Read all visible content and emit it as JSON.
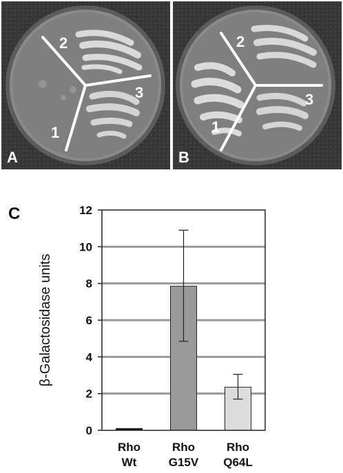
{
  "figure": {
    "panels": [
      {
        "letter": "A",
        "sectors": [
          "1",
          "2",
          "3"
        ]
      },
      {
        "letter": "B",
        "sectors": [
          "1",
          "2",
          "3"
        ]
      }
    ],
    "panel_c_letter": "C"
  },
  "chart_data": {
    "type": "bar",
    "categories": [
      {
        "line1": "Rho",
        "line2": "Wt"
      },
      {
        "line1": "Rho",
        "line2": "G15V"
      },
      {
        "line1": "Rho",
        "line2": "Q64L"
      }
    ],
    "values": [
      0.1,
      7.85,
      2.35
    ],
    "error_low": [
      0.1,
      4.85,
      1.7
    ],
    "error_high": [
      0.1,
      10.9,
      3.05
    ],
    "bar_colors": [
      "#1a1a1a",
      "#9a9a9a",
      "#dcdcdc"
    ],
    "ylabel": "β-Galactosidase units",
    "ylim": [
      0,
      12
    ],
    "yticks": [
      "0",
      "2",
      "4",
      "6",
      "8",
      "10",
      "12"
    ],
    "grid": true
  }
}
